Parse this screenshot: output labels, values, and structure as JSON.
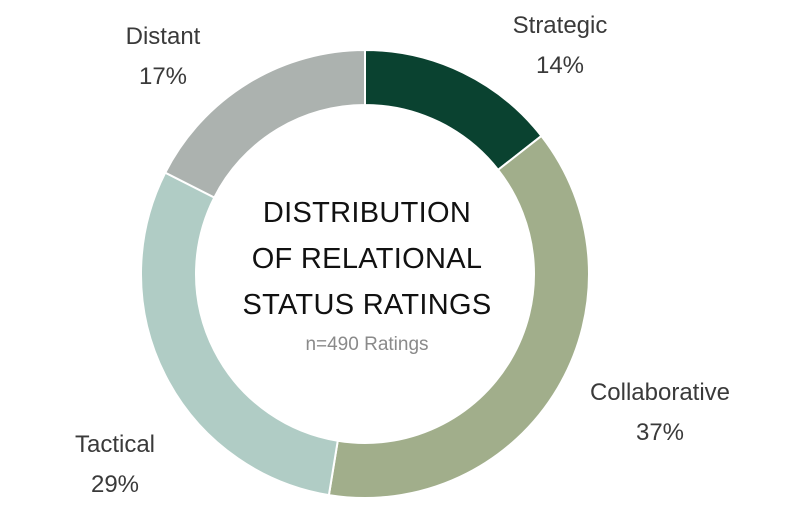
{
  "chart_data": {
    "type": "pie",
    "variant": "donut",
    "center_title_lines": [
      "DISTRIBUTION",
      "OF RELATIONAL",
      "STATUS RATINGS"
    ],
    "center_subtitle": "n=490 Ratings",
    "slices": [
      {
        "label": "Strategic",
        "value": 14,
        "display": "14%",
        "color": "#0a4230"
      },
      {
        "label": "Collaborative",
        "value": 37,
        "display": "37%",
        "color": "#a1ae8b"
      },
      {
        "label": "Tactical",
        "value": 29,
        "display": "29%",
        "color": "#b0ccc5"
      },
      {
        "label": "Distant",
        "value": 17,
        "display": "17%",
        "color": "#acb2af"
      }
    ]
  }
}
